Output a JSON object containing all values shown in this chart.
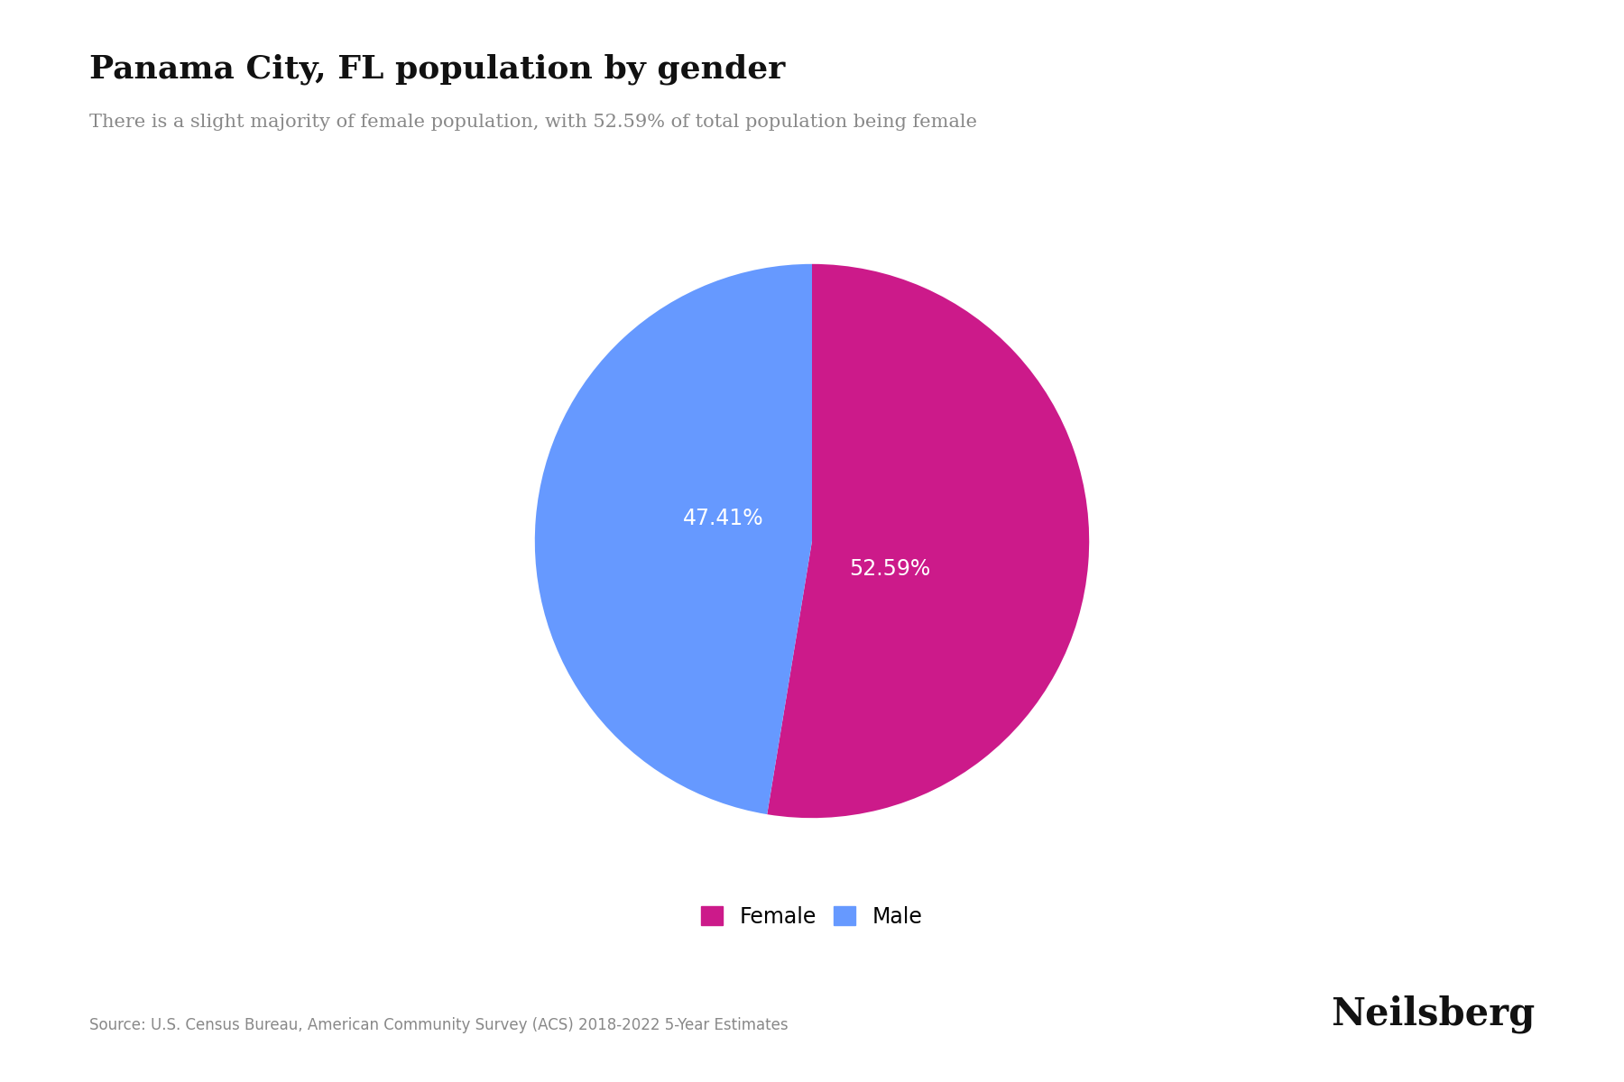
{
  "title": "Panama City, FL population by gender",
  "subtitle": "There is a slight majority of female population, with 52.59% of total population being female",
  "slices": [
    52.59,
    47.41
  ],
  "labels": [
    "Female",
    "Male"
  ],
  "colors": [
    "#CC1A8A",
    "#6699FF"
  ],
  "text_labels": [
    "52.59%",
    "47.41%"
  ],
  "source": "Source: U.S. Census Bureau, American Community Survey (ACS) 2018-2022 5-Year Estimates",
  "brand": "Neilsberg",
  "background_color": "#FFFFFF",
  "title_fontsize": 26,
  "subtitle_fontsize": 15,
  "label_fontsize": 17,
  "source_fontsize": 12,
  "brand_fontsize": 30
}
